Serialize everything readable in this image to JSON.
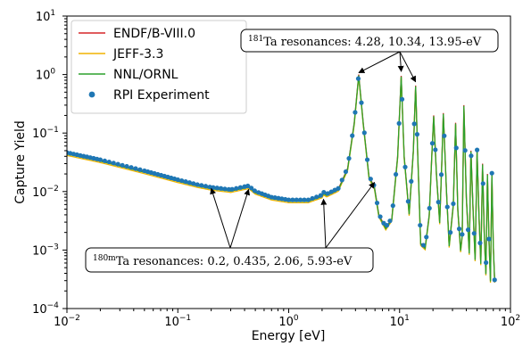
{
  "chart_data": {
    "type": "line",
    "xlabel": "Energy [eV]",
    "ylabel": "Capture Yield",
    "xscale": "log",
    "yscale": "log",
    "xlim": [
      0.01,
      100
    ],
    "ylim": [
      0.0001,
      10
    ],
    "x_ticks": [
      {
        "value": 0.01,
        "base": "10",
        "exp": "−2"
      },
      {
        "value": 0.1,
        "base": "10",
        "exp": "−1"
      },
      {
        "value": 1,
        "base": "10",
        "exp": "0"
      },
      {
        "value": 10,
        "base": "10",
        "exp": "1"
      },
      {
        "value": 100,
        "base": "10",
        "exp": "2"
      }
    ],
    "y_ticks": [
      {
        "value": 0.0001,
        "base": "10",
        "exp": "−4"
      },
      {
        "value": 0.001,
        "base": "10",
        "exp": "−3"
      },
      {
        "value": 0.01,
        "base": "10",
        "exp": "−2"
      },
      {
        "value": 0.1,
        "base": "10",
        "exp": "−1"
      },
      {
        "value": 1,
        "base": "10",
        "exp": "0"
      },
      {
        "value": 10,
        "base": "10",
        "exp": "1"
      }
    ],
    "legend_position": "top-left",
    "series": [
      {
        "name": "ENDF/B-VIII.0",
        "style": "line",
        "color": "#d62728",
        "scale": 1.0
      },
      {
        "name": "JEFF-3.3",
        "style": "line",
        "color": "#f0b400",
        "scale": 0.92
      },
      {
        "name": "NNL/ORNL",
        "style": "line",
        "color": "#2ca02c",
        "scale": 0.97
      },
      {
        "name": "RPI Experiment",
        "style": "markers",
        "color": "#1f77b4",
        "scale": 1.03
      }
    ],
    "approximate_curve": {
      "x": [
        0.01,
        0.02,
        0.05,
        0.1,
        0.15,
        0.2,
        0.3,
        0.4,
        0.435,
        0.5,
        0.7,
        1.0,
        1.5,
        2.0,
        2.06,
        2.2,
        2.8,
        3.4,
        3.9,
        4.28,
        4.7,
        5.3,
        5.93,
        6.5,
        7.5,
        8.5,
        9.6,
        10.34,
        11.0,
        12.2,
        13.3,
        13.95,
        14.6,
        15.5,
        17.0,
        18.5,
        19.5,
        20.3,
        21.5,
        23.0,
        24.0,
        24.8,
        26.5,
        28.0,
        30.5,
        32.0,
        33.5,
        35.5,
        36.7,
        38.0,
        40.0,
        42.5,
        44.0,
        46.0,
        48.0,
        50.0,
        52.0,
        54.0,
        56.0,
        58.0,
        60.0,
        62.0,
        64.0,
        66.0,
        68.0,
        70.0,
        72.0
      ],
      "y": [
        0.045,
        0.034,
        0.022,
        0.0155,
        0.0128,
        0.0115,
        0.0105,
        0.0118,
        0.0122,
        0.0098,
        0.0078,
        0.007,
        0.007,
        0.0085,
        0.0095,
        0.0088,
        0.011,
        0.025,
        0.15,
        1.0,
        0.15,
        0.018,
        0.012,
        0.004,
        0.0024,
        0.0034,
        0.04,
        0.95,
        0.04,
        0.0042,
        0.05,
        0.65,
        0.04,
        0.0013,
        0.0011,
        0.004,
        0.04,
        0.2,
        0.02,
        0.003,
        0.03,
        0.22,
        0.01,
        0.0012,
        0.006,
        0.15,
        0.005,
        0.001,
        0.0018,
        0.3,
        0.008,
        0.0009,
        0.05,
        0.005,
        0.0007,
        0.05,
        0.004,
        0.0006,
        0.03,
        0.002,
        0.0004,
        0.02,
        0.0015,
        0.0003,
        0.02,
        0.0012,
        0.0003
      ]
    },
    "annotations": [
      {
        "id": "ta181",
        "prefix": "",
        "sup": "181",
        "text": "Ta resonances: 4.28, 10.34, 13.95-eV",
        "targets": [
          {
            "x": 4.28,
            "y": 1.0
          },
          {
            "x": 10.34,
            "y": 1.05
          },
          {
            "x": 13.95,
            "y": 0.7
          }
        ]
      },
      {
        "id": "ta180m",
        "prefix": "",
        "sup": "180m",
        "text": "Ta resonances: 0.2, 0.435, 2.06, 5.93-eV",
        "targets": [
          {
            "x": 0.2,
            "y": 0.013
          },
          {
            "x": 0.435,
            "y": 0.0125
          },
          {
            "x": 2.06,
            "y": 0.0085
          },
          {
            "x": 5.93,
            "y": 0.0165
          }
        ]
      }
    ]
  }
}
